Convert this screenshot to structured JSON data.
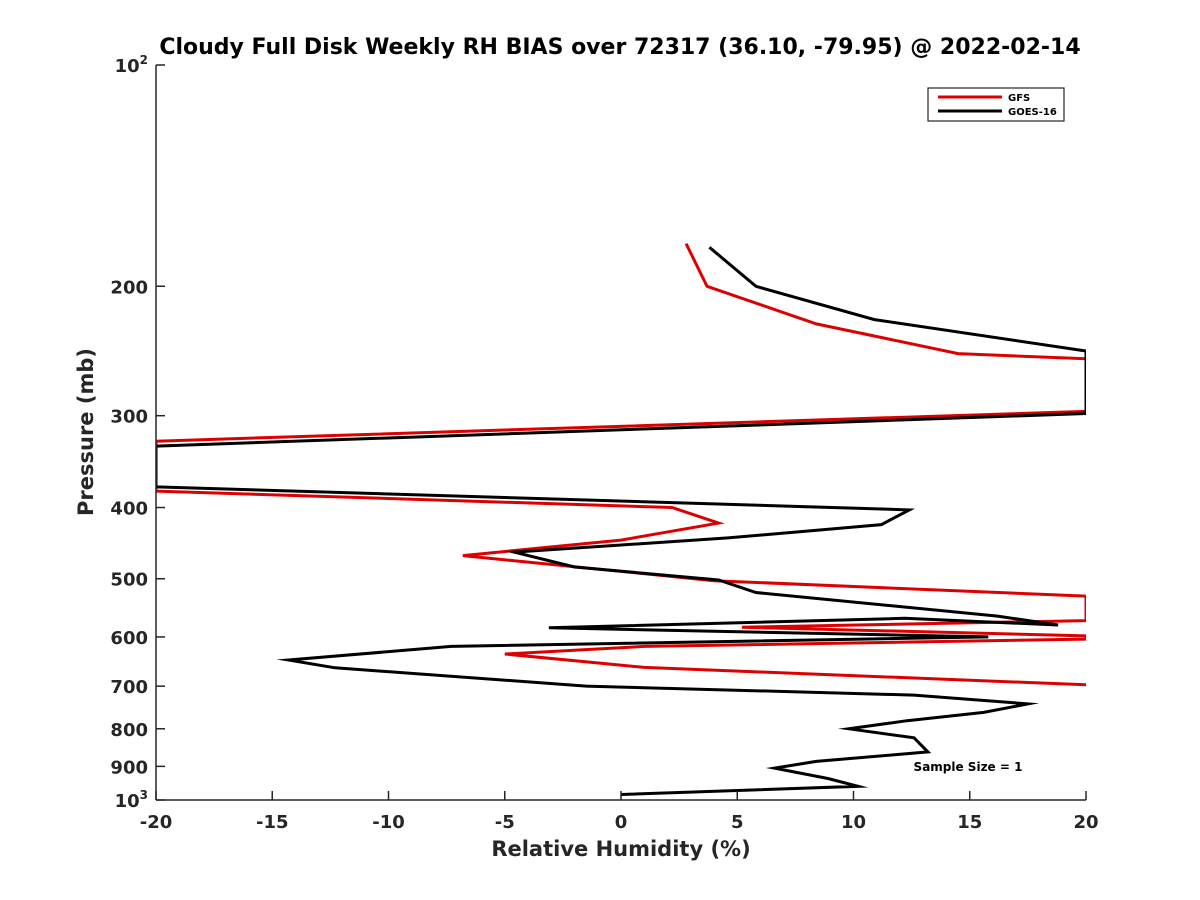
{
  "chart_data": {
    "type": "line",
    "title": "Cloudy Full Disk Weekly RH BIAS over 72317 (36.10, -79.95) @ 2022-02-14",
    "xlabel": "Relative Humidity (%)",
    "ylabel": "Pressure (mb)",
    "xlim": [
      -20,
      20
    ],
    "ylim": [
      1000,
      100
    ],
    "yscale": "log",
    "y_reversed": true,
    "grid": false,
    "legend_position": "top-right",
    "xticks": [
      -20,
      -15,
      -10,
      -5,
      0,
      5,
      10,
      15,
      20
    ],
    "xtick_labels": [
      "-20",
      "-15",
      "-10",
      "-5",
      "0",
      "5",
      "10",
      "15",
      "20"
    ],
    "yticks": [
      100,
      200,
      300,
      400,
      500,
      600,
      700,
      800,
      900,
      1000
    ],
    "ytick_labels": [
      {
        "base": "10",
        "sup": "2"
      },
      {
        "base": "200",
        "sup": ""
      },
      {
        "base": "300",
        "sup": ""
      },
      {
        "base": "400",
        "sup": ""
      },
      {
        "base": "500",
        "sup": ""
      },
      {
        "base": "600",
        "sup": ""
      },
      {
        "base": "700",
        "sup": ""
      },
      {
        "base": "800",
        "sup": ""
      },
      {
        "base": "900",
        "sup": ""
      },
      {
        "base": "10",
        "sup": "3"
      }
    ],
    "series": [
      {
        "name": "GFS",
        "color": "#dd0000",
        "points": [
          [
            2.8,
            175
          ],
          [
            3.7,
            200
          ],
          [
            8.4,
            225
          ],
          [
            14.5,
            247
          ],
          [
            20,
            251
          ],
          [
            20,
            296
          ],
          [
            -20,
            325
          ],
          [
            -20,
            380
          ],
          [
            2.2,
            400
          ],
          [
            4.2,
            420
          ],
          [
            0,
            443
          ],
          [
            -6.8,
            465
          ],
          [
            4.0,
            503
          ],
          [
            20,
            528
          ],
          [
            20,
            570
          ],
          [
            5.2,
            582
          ],
          [
            20,
            598
          ],
          [
            20,
            604
          ],
          [
            1.0,
            618
          ],
          [
            -5.0,
            633
          ],
          [
            1.0,
            660
          ],
          [
            20,
            697
          ]
        ]
      },
      {
        "name": "GOES-16",
        "color": "#000000",
        "points": [
          [
            3.8,
            177
          ],
          [
            5.8,
            200
          ],
          [
            10.9,
            222
          ],
          [
            20,
            245
          ],
          [
            20,
            298
          ],
          [
            -20,
            330
          ],
          [
            -20,
            375
          ],
          [
            12.4,
            403
          ],
          [
            11.2,
            422
          ],
          [
            4.6,
            440
          ],
          [
            -4.6,
            460
          ],
          [
            -2.0,
            482
          ],
          [
            4.2,
            502
          ],
          [
            5.8,
            522
          ],
          [
            16.2,
            562
          ],
          [
            18.8,
            578
          ],
          [
            12.2,
            566
          ],
          [
            -3.1,
            583
          ],
          [
            15.8,
            600
          ],
          [
            -7.3,
            618
          ],
          [
            -14.3,
            645
          ],
          [
            -12.3,
            661
          ],
          [
            -1.5,
            700
          ],
          [
            12.6,
            720
          ],
          [
            17.5,
            740
          ],
          [
            15.6,
            760
          ],
          [
            12.3,
            780
          ],
          [
            9.8,
            800
          ],
          [
            12.6,
            823
          ],
          [
            13.2,
            860
          ],
          [
            8.4,
            886
          ],
          [
            6.6,
            905
          ],
          [
            8.9,
            935
          ],
          [
            10.2,
            958
          ],
          [
            0,
            983
          ]
        ]
      }
    ],
    "annotation": "Sample Size = 1"
  }
}
